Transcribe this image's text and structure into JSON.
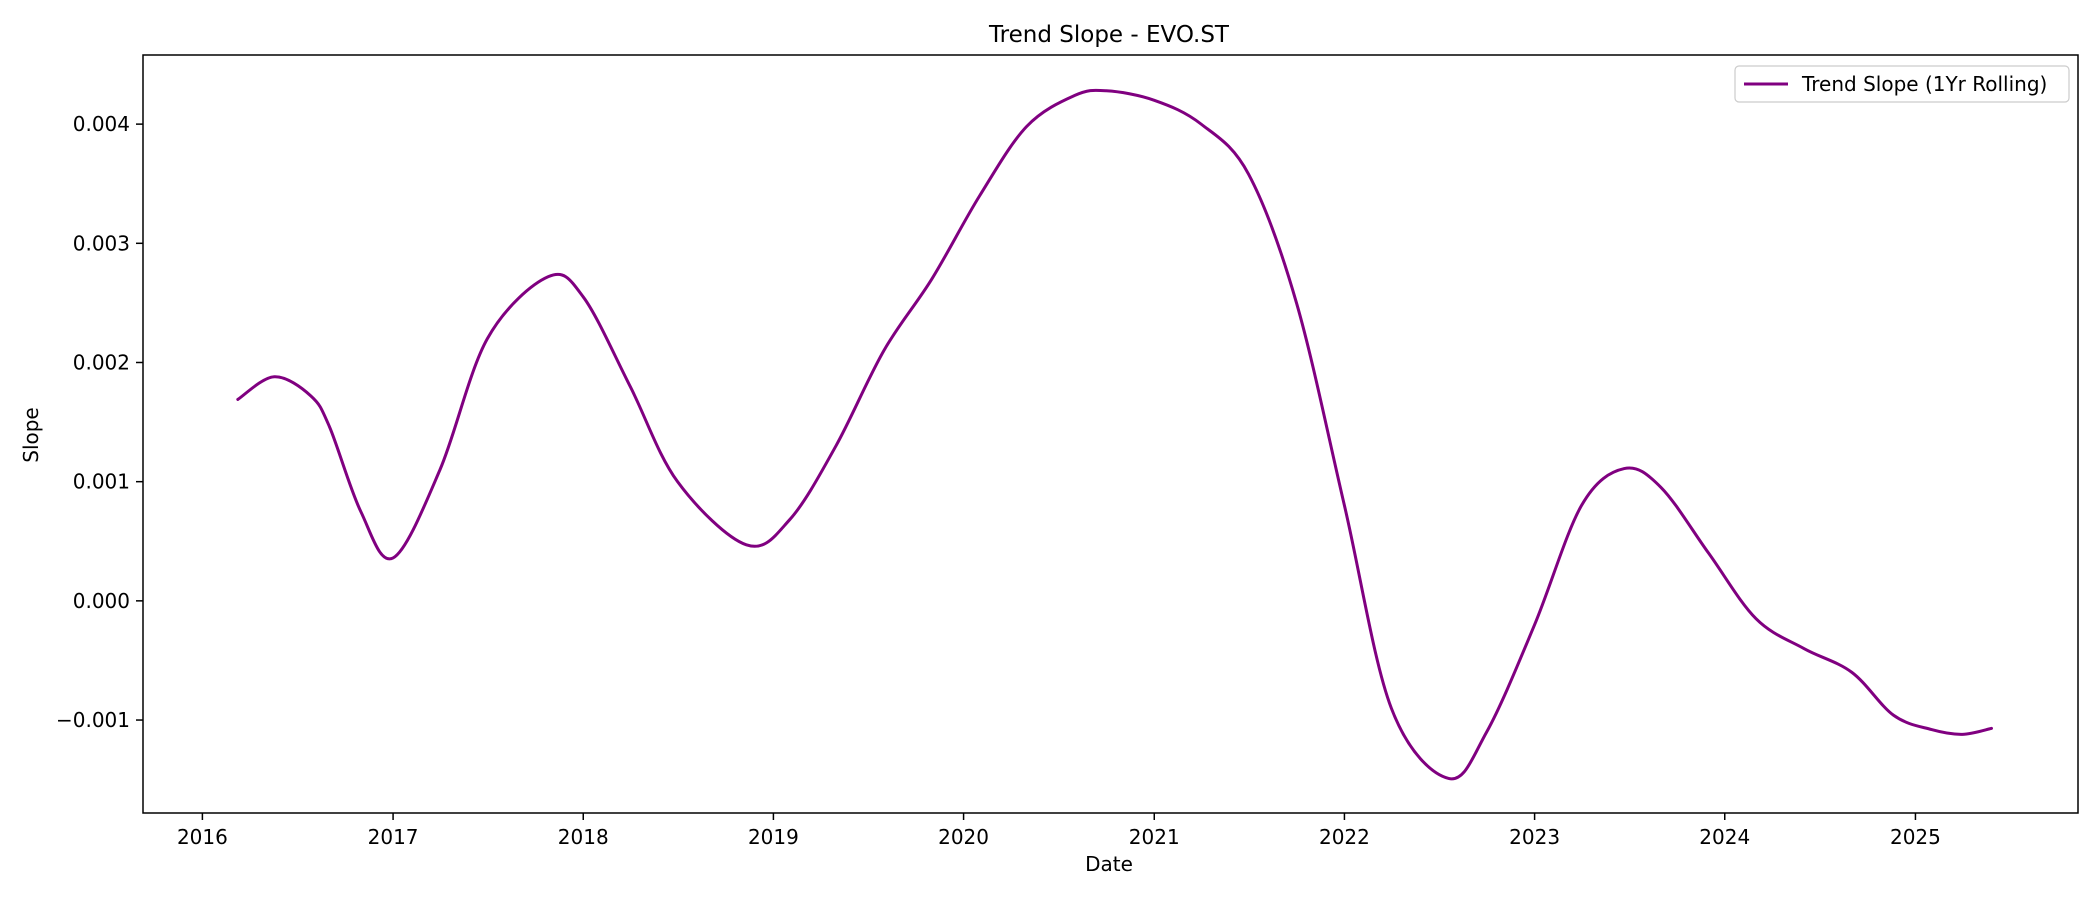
{
  "chart_data": {
    "type": "line",
    "title": "Trend Slope - EVO.ST",
    "xlabel": "Date",
    "ylabel": "Slope",
    "x_ticks": [
      "2016",
      "2017",
      "2018",
      "2019",
      "2020",
      "2021",
      "2022",
      "2023",
      "2024",
      "2025"
    ],
    "y_ticks": [
      "0.000",
      "0.001",
      "0.002",
      "0.003",
      "0.004",
      "−0.001"
    ],
    "y_tick_values": [
      0.0,
      0.001,
      0.002,
      0.003,
      0.004,
      -0.001
    ],
    "xlim": [
      "2015-09-09",
      "2025-11-09"
    ],
    "ylim": [
      -0.00178,
      0.00458
    ],
    "grid": false,
    "legend_position": "top-right",
    "series": [
      {
        "name": "Trend Slope (1Yr Rolling)",
        "color": "#800080",
        "points": [
          [
            "2016-03-09",
            0.00169
          ],
          [
            "2016-05-18",
            0.00188
          ],
          [
            "2016-07-27",
            0.00172
          ],
          [
            "2016-09-01",
            0.00146
          ],
          [
            "2016-10-31",
            0.00075
          ],
          [
            "2017-01-01",
            0.00036
          ],
          [
            "2017-04-01",
            0.0011
          ],
          [
            "2017-07-01",
            0.0022
          ],
          [
            "2017-10-26",
            0.00272
          ],
          [
            "2018-01-01",
            0.00255
          ],
          [
            "2018-04-01",
            0.0018
          ],
          [
            "2018-07-01",
            0.001
          ],
          [
            "2018-11-10",
            0.00047
          ],
          [
            "2019-02-01",
            0.00068
          ],
          [
            "2019-05-01",
            0.0013
          ],
          [
            "2019-08-01",
            0.0021
          ],
          [
            "2019-11-01",
            0.0027
          ],
          [
            "2020-02-01",
            0.0034
          ],
          [
            "2020-05-01",
            0.00398
          ],
          [
            "2020-08-01",
            0.00424
          ],
          [
            "2020-10-01",
            0.00428
          ],
          [
            "2021-01-01",
            0.0042
          ],
          [
            "2021-04-01",
            0.004
          ],
          [
            "2021-07-01",
            0.00358
          ],
          [
            "2021-10-01",
            0.0025
          ],
          [
            "2022-01-01",
            0.0008
          ],
          [
            "2022-04-01",
            -0.0009
          ],
          [
            "2022-07-20",
            -0.00149
          ],
          [
            "2022-10-01",
            -0.0011
          ],
          [
            "2023-01-01",
            -0.0002
          ],
          [
            "2023-04-01",
            0.0008
          ],
          [
            "2023-06-22",
            0.00111
          ],
          [
            "2023-09-01",
            0.00095
          ],
          [
            "2023-12-01",
            0.0004
          ],
          [
            "2024-03-01",
            -0.00015
          ],
          [
            "2024-06-01",
            -0.0004
          ],
          [
            "2024-09-01",
            -0.0006
          ],
          [
            "2024-11-20",
            -0.00096
          ],
          [
            "2025-02-01",
            -0.00108
          ],
          [
            "2025-04-01",
            -0.00112
          ],
          [
            "2025-05-27",
            -0.00107
          ]
        ]
      }
    ]
  }
}
